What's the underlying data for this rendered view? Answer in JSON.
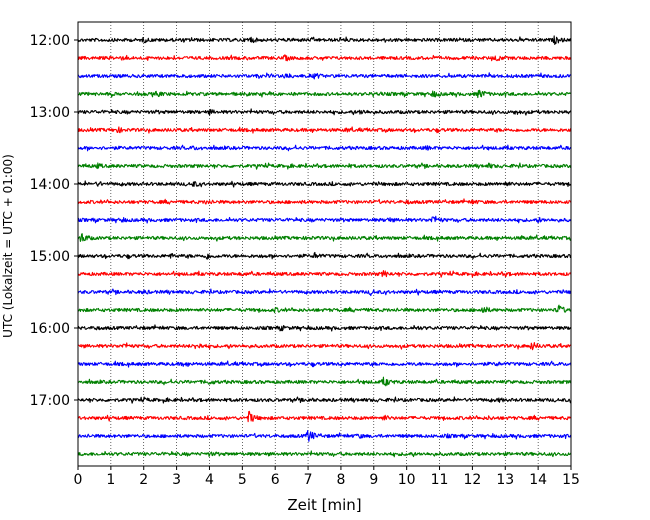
{
  "chart_data": {
    "type": "line",
    "title": "",
    "xlabel": "Zeit  [min]",
    "ylabel": "UTC (Lokalzeit = UTC + 01:00)",
    "xlim": [
      0,
      15
    ],
    "x_ticks": [
      "0",
      "1",
      "2",
      "3",
      "4",
      "5",
      "6",
      "7",
      "8",
      "9",
      "10",
      "11",
      "12",
      "13",
      "14",
      "15"
    ],
    "y_ticks": [
      {
        "label": "12:00",
        "trace": 0
      },
      {
        "label": "13:00",
        "trace": 4
      },
      {
        "label": "14:00",
        "trace": 8
      },
      {
        "label": "15:00",
        "trace": 12
      },
      {
        "label": "16:00",
        "trace": 16
      },
      {
        "label": "17:00",
        "trace": 20
      }
    ],
    "grid": "vertical dotted at each minute",
    "trace_interval_minutes": 15,
    "color_cycle": [
      "#000000",
      "#ff0000",
      "#0000ff",
      "#008000"
    ],
    "traces": [
      {
        "start": "12:00",
        "color": "#000000",
        "events": [
          [
            5.2,
            3.5
          ],
          [
            14.5,
            3.5
          ],
          [
            2.0,
            2.0
          ]
        ]
      },
      {
        "start": "12:15",
        "color": "#ff0000",
        "events": [
          [
            6.3,
            2.5
          ],
          [
            12.7,
            2.5
          ],
          [
            1.3,
            1.5
          ]
        ]
      },
      {
        "start": "12:30",
        "color": "#0000ff",
        "events": [
          [
            6.3,
            3.0
          ],
          [
            7.2,
            2.5
          ],
          [
            3.1,
            1.8
          ]
        ]
      },
      {
        "start": "12:45",
        "color": "#008000",
        "events": [
          [
            12.2,
            4.5
          ],
          [
            10.8,
            3.0
          ],
          [
            2.4,
            2.5
          ]
        ]
      },
      {
        "start": "13:00",
        "color": "#000000",
        "events": [
          [
            8.6,
            2.5
          ],
          [
            4.0,
            2.0
          ],
          [
            13.3,
            2.0
          ]
        ]
      },
      {
        "start": "13:15",
        "color": "#ff0000",
        "events": [
          [
            1.2,
            2.5
          ],
          [
            8.2,
            1.5
          ]
        ]
      },
      {
        "start": "13:30",
        "color": "#0000ff",
        "events": [
          [
            10.6,
            1.8
          ],
          [
            3.5,
            1.5
          ]
        ]
      },
      {
        "start": "13:45",
        "color": "#008000",
        "events": [
          [
            0.6,
            2.0
          ],
          [
            12.5,
            2.0
          ],
          [
            8.2,
            1.5
          ]
        ]
      },
      {
        "start": "14:00",
        "color": "#000000",
        "events": [
          [
            3.5,
            2.5
          ],
          [
            13.0,
            2.0
          ],
          [
            0.6,
            2.0
          ]
        ]
      },
      {
        "start": "14:15",
        "color": "#ff0000",
        "events": [
          [
            3.9,
            2.0
          ],
          [
            12.0,
            1.8
          ],
          [
            10.0,
            1.5
          ]
        ]
      },
      {
        "start": "14:30",
        "color": "#0000ff",
        "events": [
          [
            10.8,
            4.5
          ],
          [
            9.4,
            2.5
          ],
          [
            1.3,
            2.0
          ],
          [
            14.0,
            2.0
          ]
        ]
      },
      {
        "start": "14:45",
        "color": "#008000",
        "events": [
          [
            0.1,
            5.0
          ],
          [
            7.0,
            1.5
          ],
          [
            13.5,
            1.5
          ]
        ]
      },
      {
        "start": "15:00",
        "color": "#000000",
        "events": [
          [
            3.9,
            3.0
          ],
          [
            7.2,
            2.5
          ],
          [
            2.8,
            2.0
          ]
        ]
      },
      {
        "start": "15:15",
        "color": "#ff0000",
        "events": [
          [
            9.3,
            3.0
          ],
          [
            5.0,
            1.5
          ],
          [
            13.0,
            1.5
          ]
        ]
      },
      {
        "start": "15:30",
        "color": "#0000ff",
        "events": [
          [
            8.9,
            2.5
          ],
          [
            2.0,
            1.8
          ]
        ]
      },
      {
        "start": "15:45",
        "color": "#008000",
        "events": [
          [
            14.6,
            5.0
          ],
          [
            12.3,
            4.0
          ],
          [
            6.0,
            2.0
          ]
        ]
      },
      {
        "start": "16:00",
        "color": "#000000",
        "events": [
          [
            6.2,
            2.0
          ],
          [
            0.5,
            1.5
          ],
          [
            10.3,
            1.5
          ]
        ]
      },
      {
        "start": "16:15",
        "color": "#ff0000",
        "events": [
          [
            13.8,
            4.0
          ],
          [
            3.6,
            3.5
          ],
          [
            1.4,
            2.0
          ]
        ]
      },
      {
        "start": "16:30",
        "color": "#0000ff",
        "events": [
          [
            3.2,
            1.8
          ],
          [
            8.0,
            1.5
          ],
          [
            12.7,
            1.5
          ]
        ]
      },
      {
        "start": "16:45",
        "color": "#008000",
        "events": [
          [
            9.3,
            4.5
          ],
          [
            4.0,
            2.0
          ]
        ]
      },
      {
        "start": "17:00",
        "color": "#000000",
        "events": [
          [
            2.0,
            1.5
          ],
          [
            7.0,
            1.5
          ],
          [
            12.8,
            1.5
          ]
        ]
      },
      {
        "start": "17:15",
        "color": "#ff0000",
        "events": [
          [
            5.2,
            6.0
          ],
          [
            9.3,
            2.5
          ],
          [
            12.5,
            1.5
          ]
        ]
      },
      {
        "start": "17:30",
        "color": "#0000ff",
        "events": [
          [
            7.0,
            6.5
          ],
          [
            8.5,
            2.0
          ],
          [
            11.2,
            1.5
          ]
        ]
      },
      {
        "start": "17:45",
        "color": "#008000",
        "events": [
          [
            4.0,
            1.5
          ],
          [
            10.0,
            1.5
          ]
        ]
      }
    ]
  }
}
